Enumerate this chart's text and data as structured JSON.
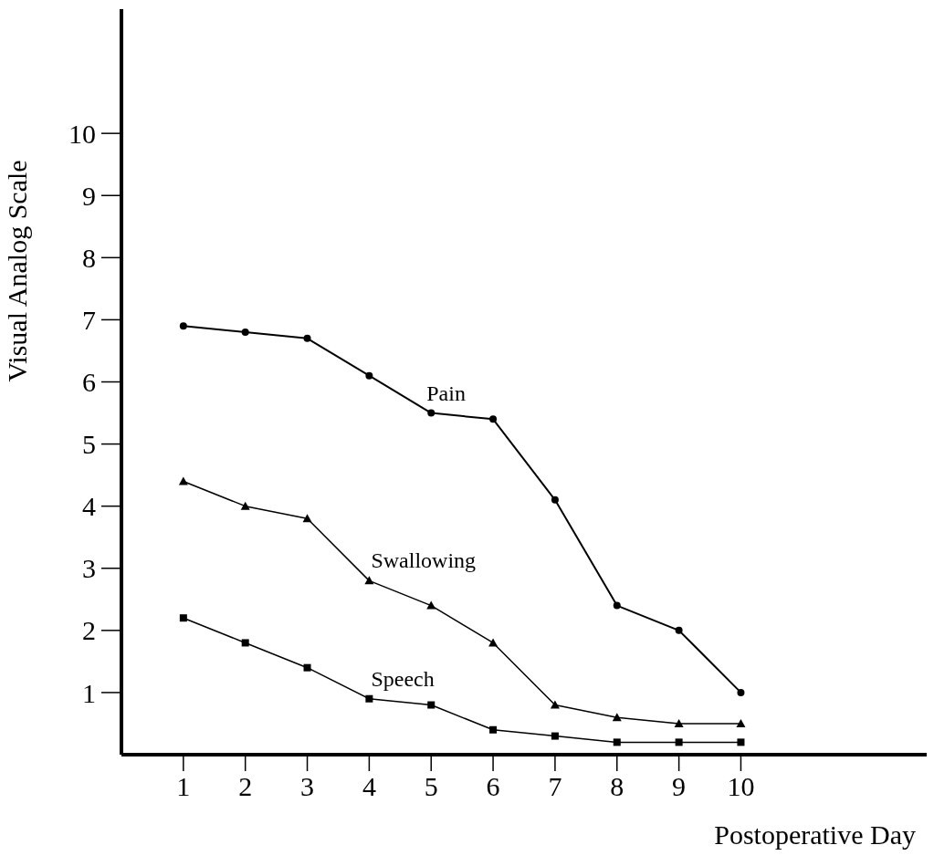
{
  "chart_data": {
    "type": "line",
    "xlabel": "Postoperative Day",
    "ylabel": "Visual Analog Scale",
    "x": [
      1,
      2,
      3,
      4,
      5,
      6,
      7,
      8,
      9,
      10
    ],
    "series": [
      {
        "name": "Pain",
        "color": "#000000",
        "marker": "circle",
        "values": [
          6.9,
          6.8,
          6.7,
          6.1,
          5.5,
          5.4,
          4.1,
          2.4,
          2.0,
          1.0
        ]
      },
      {
        "name": "Swallowing",
        "color": "#000000",
        "marker": "triangle",
        "values": [
          4.4,
          4.0,
          3.8,
          2.8,
          2.4,
          1.8,
          0.8,
          0.6,
          0.5,
          0.5
        ]
      },
      {
        "name": "Speech",
        "color": "#000000",
        "marker": "square",
        "values": [
          2.2,
          1.8,
          1.4,
          0.9,
          0.8,
          0.4,
          0.3,
          0.2,
          0.2,
          0.2
        ]
      }
    ],
    "xlim": [
      0,
      13
    ],
    "xticks": [
      1,
      2,
      3,
      4,
      5,
      6,
      7,
      8,
      9,
      10
    ],
    "ylim": [
      0,
      12
    ],
    "yticks": [
      1,
      2,
      3,
      4,
      5,
      6,
      7,
      8,
      9,
      10
    ],
    "grid": false,
    "legend": false,
    "line_style": "solid"
  }
}
